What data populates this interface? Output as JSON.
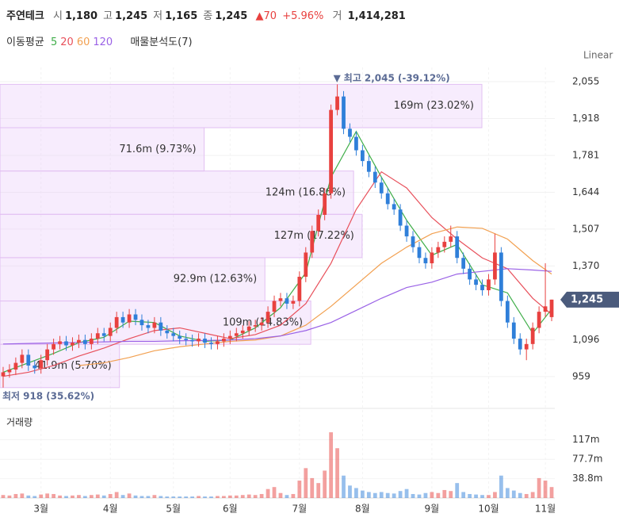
{
  "header": {
    "name": "주연테크",
    "quote": [
      {
        "label": "시",
        "value": "1,180"
      },
      {
        "label": "고",
        "value": "1,245"
      },
      {
        "label": "저",
        "value": "1,165"
      },
      {
        "label": "종",
        "value": "1,245"
      }
    ],
    "change": "▲70",
    "change_pct": "+5.96%",
    "volume_label": "거",
    "volume": "1,414,281"
  },
  "chart_data": {
    "type": "candlestick",
    "scale_label": "Linear",
    "up_color": "#e8413f",
    "down_color": "#2f7fd9",
    "categories": [
      null,
      null,
      null,
      null,
      null,
      null,
      "3월",
      null,
      null,
      null,
      null,
      null,
      null,
      null,
      null,
      null,
      null,
      "4월",
      null,
      null,
      null,
      null,
      null,
      null,
      null,
      null,
      null,
      "5월",
      null,
      null,
      null,
      null,
      null,
      null,
      null,
      null,
      "6월",
      null,
      null,
      null,
      null,
      null,
      null,
      null,
      null,
      null,
      null,
      "7월",
      null,
      null,
      null,
      null,
      null,
      null,
      null,
      null,
      null,
      "8월",
      null,
      null,
      null,
      null,
      null,
      null,
      null,
      null,
      null,
      null,
      "9월",
      null,
      null,
      null,
      null,
      null,
      null,
      null,
      null,
      "10월",
      null,
      null,
      null,
      null,
      null,
      null,
      null,
      null,
      "11월",
      null
    ],
    "open": [
      960,
      975,
      985,
      1010,
      1040,
      1000,
      990,
      1020,
      1060,
      1080,
      1090,
      1075,
      1085,
      1095,
      1080,
      1100,
      1120,
      1110,
      1140,
      1180,
      1160,
      1190,
      1170,
      1150,
      1140,
      1160,
      1130,
      1120,
      1110,
      1100,
      1095,
      1090,
      1100,
      1085,
      1080,
      1090,
      1100,
      1110,
      1120,
      1130,
      1145,
      1150,
      1160,
      1200,
      1240,
      1250,
      1230,
      1240,
      1330,
      1420,
      1500,
      1560,
      1640,
      1950,
      2000,
      1880,
      1850,
      1800,
      1760,
      1720,
      1680,
      1640,
      1600,
      1580,
      1520,
      1480,
      1440,
      1400,
      1380,
      1420,
      1440,
      1460,
      1480,
      1400,
      1360,
      1320,
      1300,
      1280,
      1320,
      1420,
      1240,
      1160,
      1100,
      1060,
      1080,
      1140,
      1200,
      1180
    ],
    "high": [
      995,
      1005,
      1030,
      1060,
      1060,
      1020,
      1040,
      1080,
      1100,
      1110,
      1110,
      1105,
      1115,
      1115,
      1120,
      1140,
      1140,
      1160,
      1200,
      1200,
      1210,
      1210,
      1190,
      1170,
      1180,
      1180,
      1150,
      1140,
      1130,
      1120,
      1115,
      1120,
      1120,
      1105,
      1110,
      1120,
      1130,
      1140,
      1150,
      1165,
      1170,
      1180,
      1220,
      1260,
      1270,
      1270,
      1260,
      1350,
      1440,
      1520,
      1580,
      1660,
      1970,
      2045,
      2020,
      1900,
      1870,
      1820,
      1780,
      1740,
      1700,
      1660,
      1620,
      1600,
      1540,
      1500,
      1460,
      1420,
      1440,
      1460,
      1480,
      1520,
      1500,
      1420,
      1380,
      1340,
      1320,
      1340,
      1490,
      1440,
      1260,
      1180,
      1120,
      1100,
      1160,
      1220,
      1380,
      1245
    ],
    "low": [
      918,
      955,
      965,
      990,
      980,
      970,
      970,
      1000,
      1040,
      1060,
      1055,
      1055,
      1065,
      1060,
      1060,
      1080,
      1090,
      1090,
      1120,
      1140,
      1140,
      1150,
      1130,
      1120,
      1120,
      1110,
      1100,
      1090,
      1080,
      1075,
      1070,
      1070,
      1065,
      1060,
      1060,
      1070,
      1080,
      1090,
      1100,
      1110,
      1125,
      1130,
      1140,
      1180,
      1220,
      1210,
      1210,
      1220,
      1310,
      1400,
      1480,
      1540,
      1620,
      1930,
      1860,
      1830,
      1780,
      1740,
      1700,
      1660,
      1620,
      1580,
      1560,
      1500,
      1460,
      1420,
      1380,
      1360,
      1360,
      1400,
      1420,
      1440,
      1380,
      1340,
      1300,
      1280,
      1260,
      1260,
      1300,
      1220,
      1140,
      1080,
      1040,
      1020,
      1060,
      1120,
      1180,
      1165
    ],
    "close": [
      975,
      985,
      1010,
      1040,
      1000,
      990,
      1020,
      1060,
      1080,
      1090,
      1075,
      1085,
      1095,
      1080,
      1100,
      1120,
      1110,
      1140,
      1180,
      1160,
      1190,
      1170,
      1150,
      1140,
      1160,
      1130,
      1120,
      1110,
      1100,
      1095,
      1090,
      1100,
      1085,
      1080,
      1090,
      1100,
      1110,
      1120,
      1130,
      1145,
      1150,
      1160,
      1200,
      1240,
      1250,
      1230,
      1240,
      1330,
      1420,
      1500,
      1560,
      1640,
      1950,
      2000,
      1880,
      1850,
      1800,
      1760,
      1720,
      1680,
      1640,
      1600,
      1580,
      1520,
      1480,
      1440,
      1400,
      1380,
      1420,
      1440,
      1460,
      1480,
      1400,
      1360,
      1320,
      1300,
      1280,
      1320,
      1420,
      1240,
      1160,
      1100,
      1060,
      1080,
      1140,
      1200,
      1220,
      1245
    ],
    "ylim": [
      885,
      2108
    ],
    "yticks": [
      {
        "value": 959,
        "label": "959"
      },
      {
        "value": 1096,
        "label": "1,096"
      },
      {
        "value": 1370,
        "label": "1,370"
      },
      {
        "value": 1507,
        "label": "1,507"
      },
      {
        "value": 1644,
        "label": "1,644"
      },
      {
        "value": 1781,
        "label": "1,781"
      },
      {
        "value": 1918,
        "label": "1,918"
      },
      {
        "value": 2055,
        "label": "2,055"
      }
    ],
    "grid": true,
    "last": {
      "value": 1245,
      "label": "1,245",
      "color": "#4b5b7c"
    },
    "high_mark": {
      "marker": "▼",
      "label": "최고",
      "value": 2045,
      "value_label": "2,045",
      "change": "(-39.12%)",
      "index": 53
    },
    "low_mark": {
      "label": "최저",
      "value": 918,
      "value_label": "918",
      "change": "(35.62%)",
      "index": 0
    },
    "ma_title": "이동평균",
    "ma_x": [
      0,
      4,
      8,
      12,
      16,
      20,
      24,
      28,
      32,
      36,
      40,
      44,
      48,
      52,
      56,
      60,
      64,
      68,
      72,
      76,
      80,
      84,
      87
    ],
    "ma": [
      {
        "name": "5",
        "color": "#3fae49",
        "values": [
          975,
          1010,
          1045,
          1085,
          1105,
          1165,
          1160,
          1110,
          1090,
          1095,
          1140,
          1215,
          1345,
          1700,
          1870,
          1700,
          1540,
          1410,
          1450,
          1300,
          1270,
          1120,
          1210
        ]
      },
      {
        "name": "20",
        "color": "#e8505b",
        "values": [
          960,
          975,
          1000,
          1035,
          1065,
          1100,
          1130,
          1140,
          1120,
          1100,
          1115,
          1150,
          1230,
          1380,
          1580,
          1720,
          1660,
          1550,
          1470,
          1400,
          1360,
          1250,
          1190
        ]
      },
      {
        "name": "60",
        "color": "#f2a050",
        "values": [
          null,
          null,
          null,
          1000,
          1010,
          1030,
          1055,
          1070,
          1080,
          1090,
          1095,
          1110,
          1150,
          1220,
          1300,
          1380,
          1440,
          1490,
          1515,
          1510,
          1470,
          1390,
          1340
        ]
      },
      {
        "name": "120",
        "color": "#9a62e6",
        "values": [
          1080,
          1082,
          1084,
          1086,
          1088,
          1090,
          1090,
          1092,
          1093,
          1095,
          1100,
          1110,
          1130,
          1160,
          1205,
          1250,
          1290,
          1310,
          1340,
          1350,
          1360,
          1355,
          1350
        ]
      }
    ],
    "profile": {
      "title": "매물분석도(7)",
      "bins": [
        918,
        1079,
        1240,
        1401,
        1562,
        1723,
        1884,
        2045
      ],
      "values": [
        41.9,
        109,
        92.9,
        127,
        124,
        71.6,
        169
      ],
      "value_labels": [
        "41.9m (5.70%)",
        "109m (14.83%)",
        "92.9m (12.63%)",
        "127m (17.22%)",
        "124m (16.86%)",
        "71.6m (9.73%)",
        "169m (23.02%)"
      ]
    },
    "volume": {
      "title": "거래량",
      "ylim": [
        0,
        172
      ],
      "yticks": [
        {
          "value": 38.8,
          "label": "38.8m"
        },
        {
          "value": 77.7,
          "label": "77.7m"
        },
        {
          "value": 117,
          "label": "117m"
        }
      ],
      "values": [
        6,
        5,
        8,
        9,
        5,
        4,
        7,
        9,
        8,
        5,
        4,
        5,
        6,
        4,
        6,
        7,
        5,
        8,
        12,
        6,
        9,
        5,
        4,
        4,
        6,
        4,
        3,
        3,
        3,
        3,
        3,
        4,
        3,
        3,
        4,
        4,
        5,
        5,
        6,
        7,
        6,
        8,
        18,
        22,
        10,
        6,
        8,
        35,
        60,
        40,
        30,
        55,
        132,
        100,
        45,
        25,
        20,
        15,
        12,
        10,
        12,
        10,
        9,
        14,
        18,
        8,
        7,
        10,
        12,
        10,
        16,
        14,
        30,
        12,
        8,
        7,
        6,
        6,
        12,
        45,
        20,
        15,
        10,
        8,
        12,
        40,
        35,
        22
      ]
    }
  }
}
